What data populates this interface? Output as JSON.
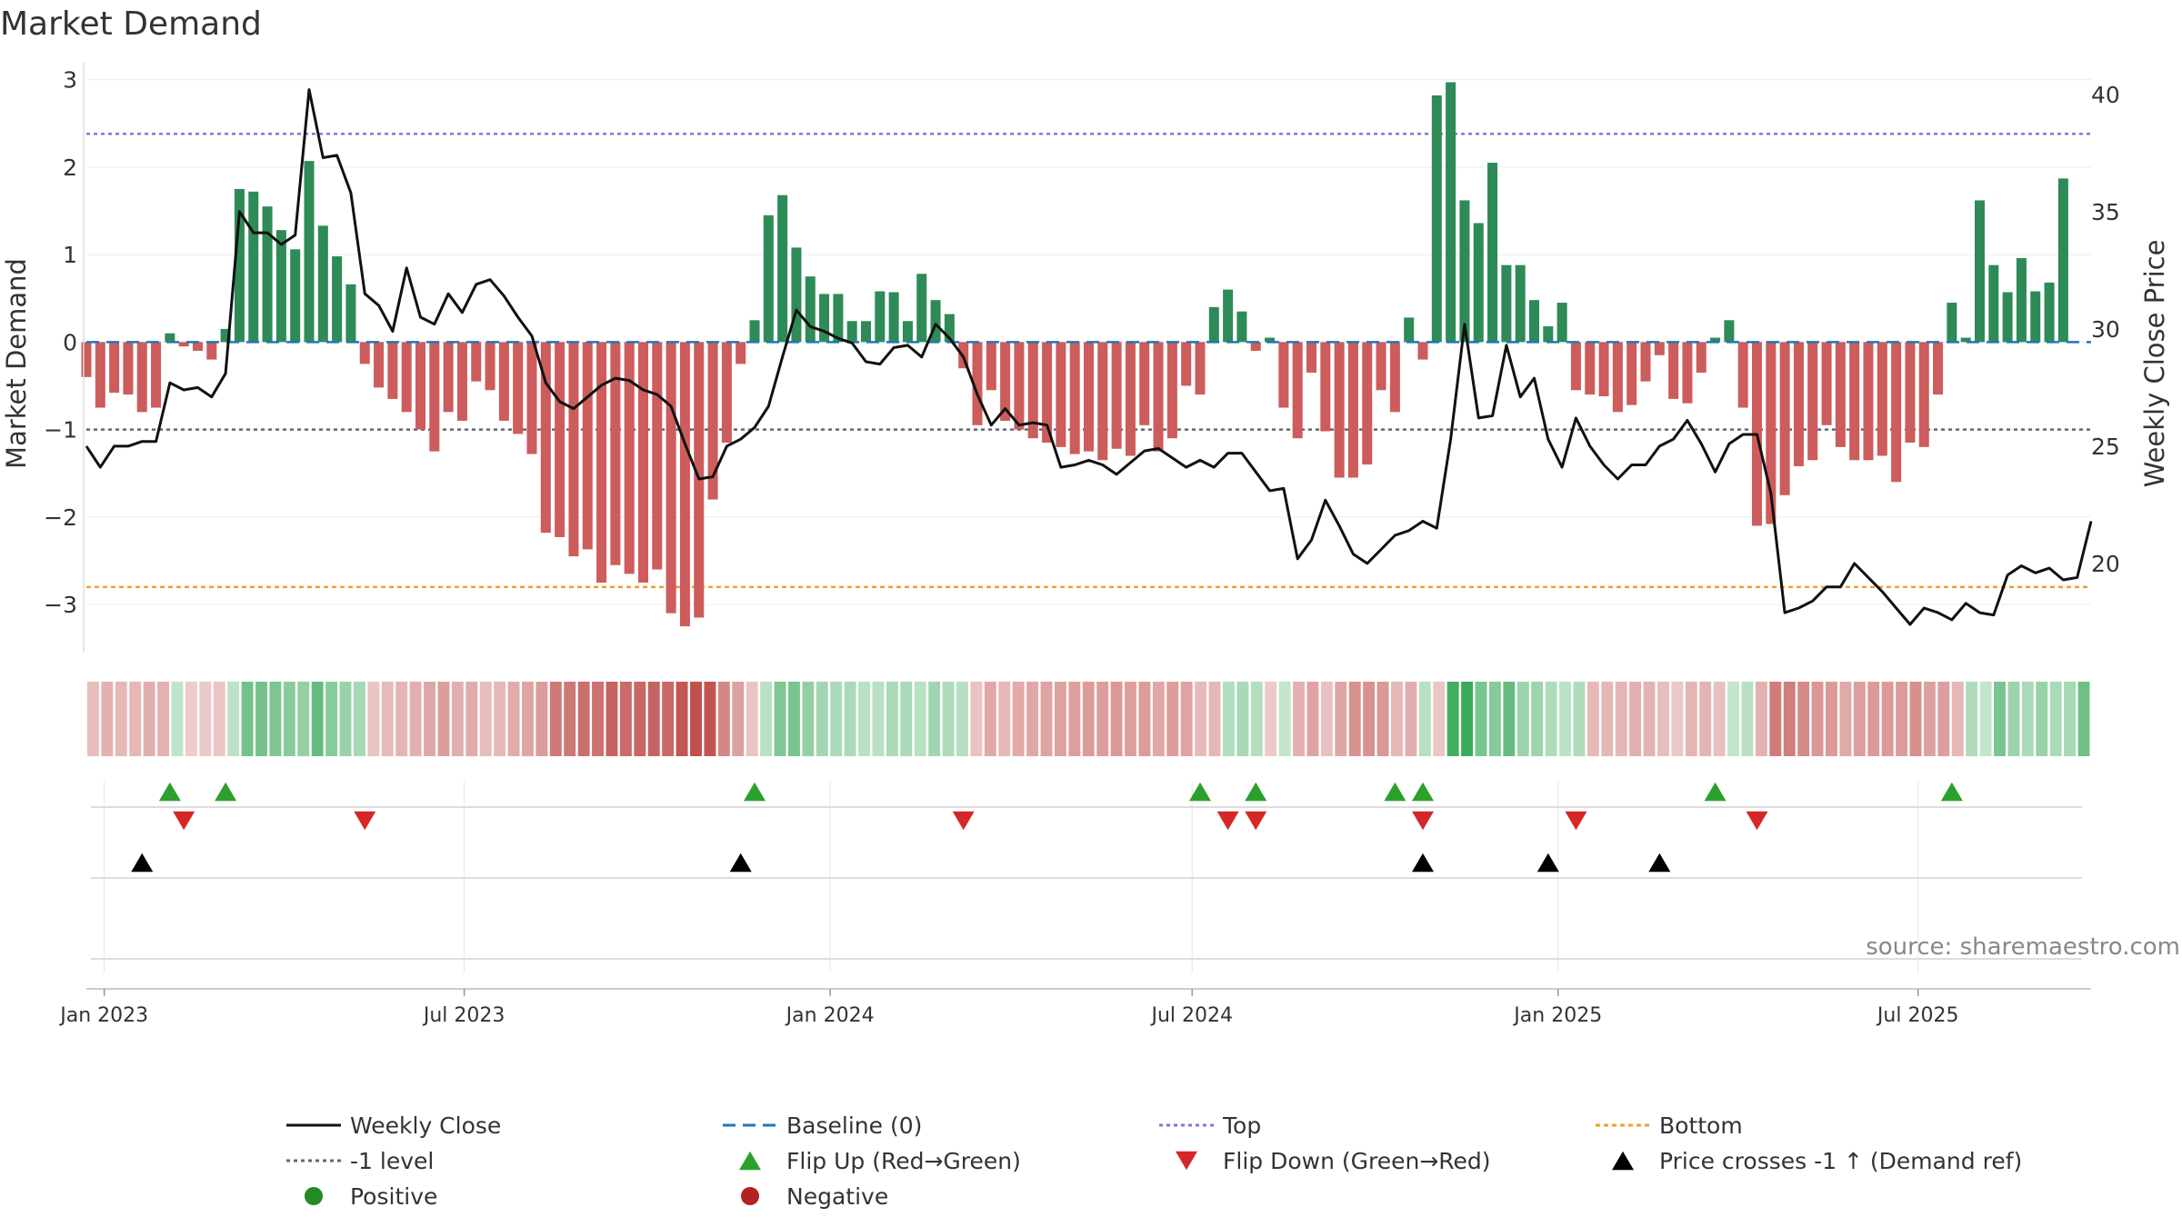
{
  "chart_data": {
    "type": "bar",
    "title": "Market Demand",
    "ylabel_left": "Market Demand",
    "ylabel_right": "Weekly Close Price",
    "source": "source: sharemaestro.com",
    "ylim_left": [
      -3.55,
      3.1
    ],
    "ylim_right": [
      16.2,
      41.0
    ],
    "yticks_left": [
      3,
      2,
      1,
      0,
      -1,
      -2,
      -3
    ],
    "yticks_left_labels": [
      "3",
      "2",
      "1",
      "0",
      "−1",
      "−2",
      "−3"
    ],
    "yticks_right": [
      40,
      35,
      30,
      25,
      20
    ],
    "x_start": "2022-12-23",
    "x_end": "2025-09-26",
    "x_ticks": [
      {
        "date": "2023-01-01",
        "label": "Jan 2023"
      },
      {
        "date": "2023-07-01",
        "label": "Jul 2023"
      },
      {
        "date": "2024-01-01",
        "label": "Jan 2024"
      },
      {
        "date": "2024-07-01",
        "label": "Jul 2024"
      },
      {
        "date": "2025-01-01",
        "label": "Jan 2025"
      },
      {
        "date": "2025-07-01",
        "label": "Jul 2025"
      }
    ],
    "reference_lines": {
      "top": 2.38,
      "bottom": -2.8,
      "minus_one": -1,
      "baseline": 0
    },
    "colors": {
      "positive_bar": "#2e8b57",
      "negative_bar": "#cd5c5c",
      "weekly_close": "#111111",
      "baseline": "#1f77b4",
      "top": "#7b7bd6",
      "minus_one": "#666677",
      "bottom": "#f0a030",
      "flip_up": "#2ca02c",
      "flip_down": "#d62728",
      "price_cross": "#000000",
      "positive_dot": "#228b22",
      "negative_dot": "#b22222"
    },
    "week_index_origin": "2022-12-23",
    "series": [
      {
        "name": "Market Demand",
        "start": "2022-12-23",
        "step_days": 7,
        "values": [
          -0.4,
          -0.75,
          -0.58,
          -0.6,
          -0.8,
          -0.75,
          0.1,
          -0.05,
          -0.1,
          -0.2,
          0.15,
          1.75,
          1.72,
          1.55,
          1.28,
          1.06,
          2.07,
          1.33,
          0.98,
          0.66,
          -0.25,
          -0.52,
          -0.65,
          -0.8,
          -1.0,
          -1.25,
          -0.8,
          -0.9,
          -0.45,
          -0.55,
          -0.9,
          -1.05,
          -1.28,
          -2.18,
          -2.23,
          -2.45,
          -2.37,
          -2.75,
          -2.55,
          -2.65,
          -2.75,
          -2.6,
          -3.1,
          -3.25,
          -3.15,
          -1.8,
          -1.15,
          -0.25,
          0.25,
          1.45,
          1.68,
          1.08,
          0.75,
          0.55,
          0.55,
          0.24,
          0.24,
          0.58,
          0.57,
          0.24,
          0.78,
          0.48,
          0.32,
          -0.3,
          -0.95,
          -0.55,
          -0.9,
          -1.0,
          -1.1,
          -1.15,
          -1.2,
          -1.28,
          -1.25,
          -1.35,
          -1.22,
          -1.3,
          -0.95,
          -1.25,
          -1.1,
          -0.5,
          -0.6,
          0.4,
          0.6,
          0.35,
          -0.1,
          0.05,
          -0.75,
          -1.1,
          -0.35,
          -1.02,
          -1.55,
          -1.55,
          -1.4,
          -0.55,
          -0.8,
          0.28,
          -0.2,
          2.82,
          2.97,
          1.62,
          1.36,
          2.05,
          0.88,
          0.88,
          0.48,
          0.18,
          0.45,
          -0.55,
          -0.6,
          -0.62,
          -0.8,
          -0.72,
          -0.45,
          -0.15,
          -0.65,
          -0.7,
          -0.35,
          0.05,
          0.25,
          -0.75,
          -2.1,
          -2.08,
          -1.75,
          -1.42,
          -1.35,
          -0.95,
          -1.2,
          -1.35,
          -1.35,
          -1.3,
          -1.6,
          -1.15,
          -1.2,
          -0.6,
          0.45,
          0.05,
          1.62,
          0.88,
          0.57,
          0.96,
          0.58,
          0.68,
          1.87
        ]
      },
      {
        "name": "Weekly Close",
        "start": "2022-12-23",
        "step_days": 7,
        "values": [
          25.0,
          24.1,
          25.0,
          25.0,
          25.2,
          25.2,
          27.7,
          27.4,
          27.5,
          27.1,
          28.1,
          35.0,
          34.1,
          34.1,
          33.6,
          34.0,
          40.2,
          37.3,
          37.4,
          35.8,
          31.5,
          31.0,
          29.9,
          32.6,
          30.5,
          30.2,
          31.5,
          30.7,
          31.9,
          32.1,
          31.4,
          30.5,
          29.7,
          27.7,
          26.9,
          26.6,
          27.1,
          27.6,
          27.9,
          27.8,
          27.4,
          27.2,
          26.7,
          25.1,
          23.6,
          23.7,
          25.0,
          25.3,
          25.8,
          26.7,
          28.8,
          30.8,
          30.1,
          29.9,
          29.6,
          29.4,
          28.6,
          28.5,
          29.2,
          29.3,
          28.8,
          30.2,
          29.6,
          28.8,
          27.2,
          25.9,
          26.6,
          25.9,
          26.0,
          25.9,
          24.1,
          24.2,
          24.4,
          24.2,
          23.8,
          24.3,
          24.8,
          24.9,
          24.5,
          24.1,
          24.4,
          24.1,
          24.7,
          24.7,
          23.9,
          23.1,
          23.2,
          20.2,
          21.0,
          22.7,
          21.6,
          20.4,
          20.0,
          20.6,
          21.2,
          21.4,
          21.8,
          21.5,
          25.3,
          30.2,
          26.2,
          26.3,
          29.3,
          27.1,
          27.9,
          25.3,
          24.1,
          26.2,
          25.0,
          24.2,
          23.6,
          24.2,
          24.2,
          25.0,
          25.3,
          26.1,
          25.1,
          23.9,
          25.1,
          25.5,
          25.5,
          23.0,
          17.9,
          18.1,
          18.4,
          19.0,
          19.0,
          20.0,
          19.4,
          18.8,
          18.1,
          17.4,
          18.1,
          17.9,
          17.6,
          18.3,
          17.9,
          17.8,
          19.5,
          19.9,
          19.6,
          19.8,
          19.3,
          19.4,
          21.8
        ]
      }
    ],
    "flip_up_weeks": [
      6,
      10,
      48,
      80,
      84,
      94,
      96,
      117,
      134
    ],
    "flip_down_weeks": [
      7,
      20,
      63,
      82,
      84,
      96,
      107,
      120
    ],
    "price_cross_weeks": [
      4,
      47,
      96,
      105,
      113
    ],
    "legend": [
      {
        "key": "close",
        "label": "Weekly Close"
      },
      {
        "key": "baseline",
        "label": "Baseline (0)"
      },
      {
        "key": "top",
        "label": "Top"
      },
      {
        "key": "bottom",
        "label": "Bottom"
      },
      {
        "key": "minus_one",
        "label": "-1 level"
      },
      {
        "key": "flip_up",
        "label": "Flip Up (Red→Green)"
      },
      {
        "key": "flip_down",
        "label": "Flip Down (Green→Red)"
      },
      {
        "key": "price_cross",
        "label": "Price crosses -1 ↑ (Demand ref)"
      },
      {
        "key": "positive_dot",
        "label": "Positive"
      },
      {
        "key": "negative_dot",
        "label": "Negative"
      }
    ],
    "legend_placement": "bottom",
    "grid": true
  }
}
